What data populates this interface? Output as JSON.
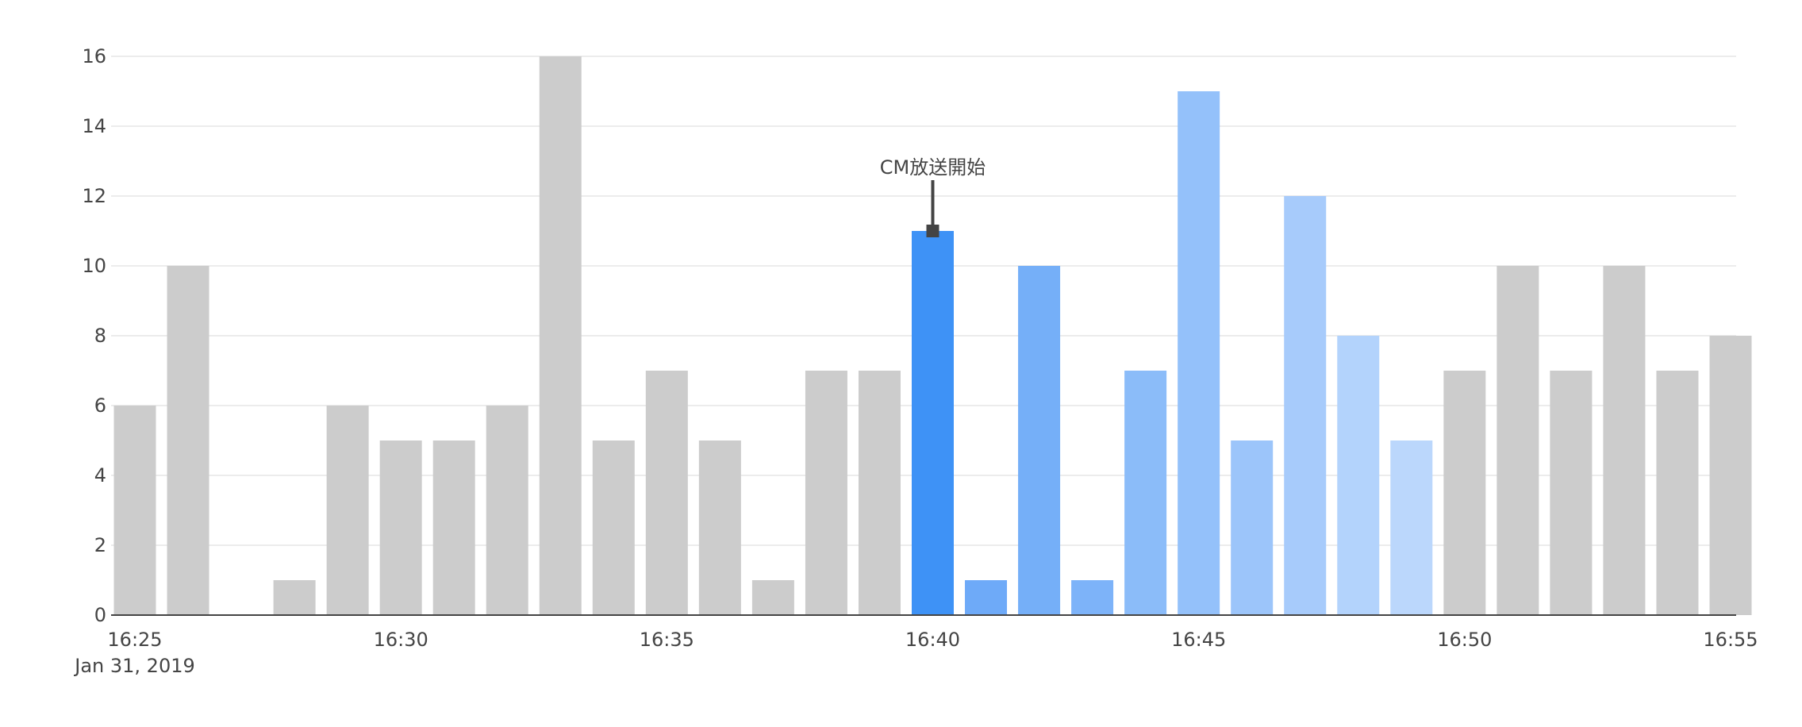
{
  "chart_data": {
    "type": "bar",
    "x": [
      "16:25",
      "16:26",
      "16:27",
      "16:28",
      "16:29",
      "16:30",
      "16:31",
      "16:32",
      "16:33",
      "16:34",
      "16:35",
      "16:36",
      "16:37",
      "16:38",
      "16:39",
      "16:40",
      "16:41",
      "16:42",
      "16:43",
      "16:44",
      "16:45",
      "16:46",
      "16:47",
      "16:48",
      "16:49",
      "16:50",
      "16:51",
      "16:52",
      "16:53",
      "16:54",
      "16:55"
    ],
    "values": [
      6,
      10,
      0,
      1,
      6,
      5,
      5,
      6,
      16,
      5,
      7,
      5,
      1,
      7,
      7,
      11,
      1,
      10,
      1,
      7,
      15,
      5,
      12,
      8,
      5,
      7,
      10,
      7,
      10,
      7,
      8
    ],
    "colors": [
      "#cccccc",
      "#cccccc",
      "#cccccc",
      "#cccccc",
      "#cccccc",
      "#cccccc",
      "#cccccc",
      "#cccccc",
      "#cccccc",
      "#cccccc",
      "#cccccc",
      "#cccccc",
      "#cccccc",
      "#cccccc",
      "#cccccc",
      "#3e92f6",
      "#6eaaf8",
      "#75aff8",
      "#7db3f9",
      "#8bbcf9",
      "#94c1fa",
      "#9cc5fa",
      "#a7cbfb",
      "#b3d3fc",
      "#bbd7fc",
      "#cccccc",
      "#cccccc",
      "#cccccc",
      "#cccccc",
      "#cccccc",
      "#cccccc"
    ],
    "ylim": [
      0,
      16
    ],
    "yticks": [
      0,
      2,
      4,
      6,
      8,
      10,
      12,
      14,
      16
    ],
    "xticks": [
      {
        "label": "16:25",
        "index": 0
      },
      {
        "label": "16:30",
        "index": 5
      },
      {
        "label": "16:35",
        "index": 10
      },
      {
        "label": "16:40",
        "index": 15
      },
      {
        "label": "16:45",
        "index": 20
      },
      {
        "label": "16:50",
        "index": 25
      },
      {
        "label": "16:55",
        "index": 30
      }
    ],
    "x_sublabel": "Jan 31, 2019",
    "grid": true,
    "annotation": {
      "text": "CM放送開始",
      "x": "16:40",
      "y": 11
    }
  }
}
